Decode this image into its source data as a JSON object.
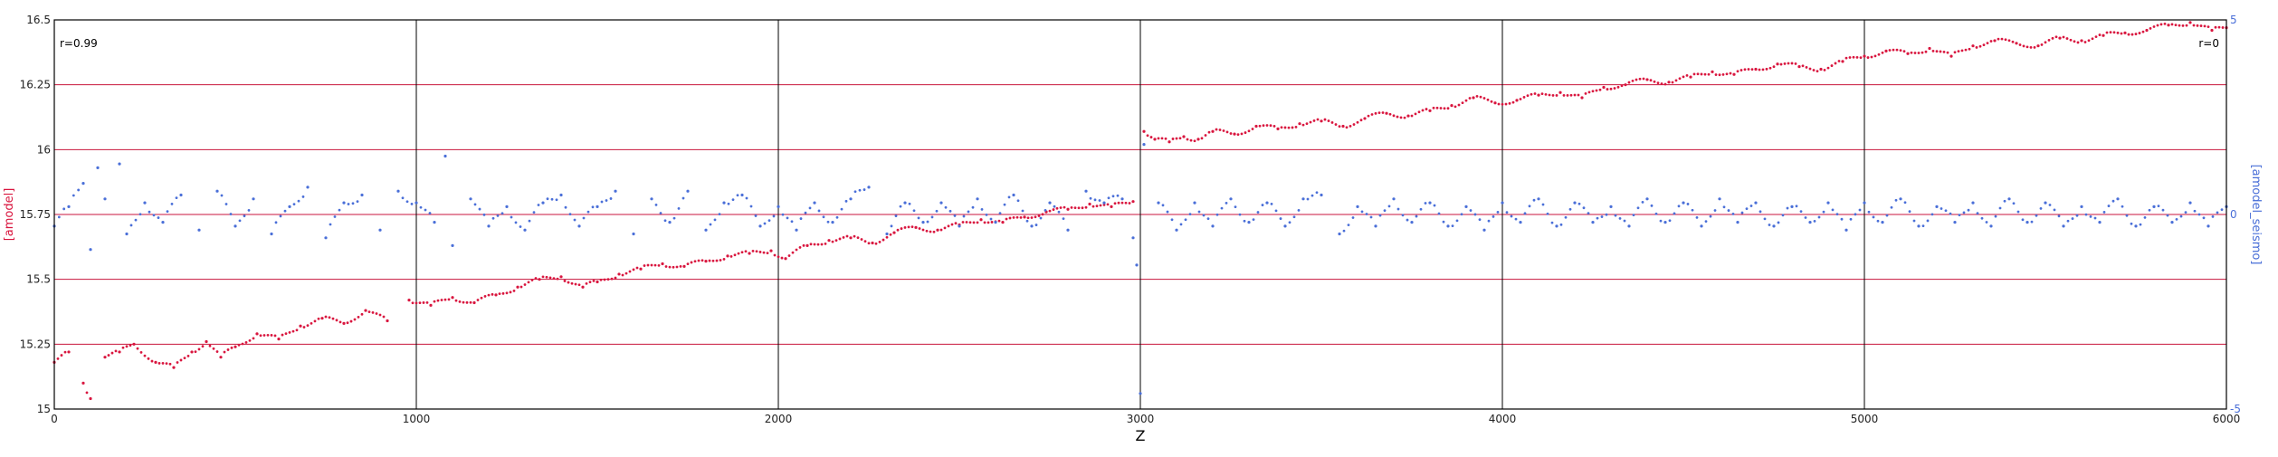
{
  "chart_data": {
    "type": "scatter",
    "xlabel": "Z",
    "y_left_label": "[amodel]",
    "y_right_label": "[amodel_seismo]",
    "x_range": [
      0,
      6000
    ],
    "y_left_range": [
      15,
      16.5
    ],
    "y_right_range": [
      -5,
      5
    ],
    "x_ticks": [
      "0",
      "1000",
      "2000",
      "3000",
      "4000",
      "5000",
      "6000"
    ],
    "y_left_ticks": [
      "15",
      "15.25",
      "15.5",
      "15.75",
      "16",
      "16.25",
      "16.5"
    ],
    "y_right_ticks": [
      "-5",
      "0",
      "5"
    ],
    "grid": {
      "vertical": true,
      "horizontal": true
    },
    "annotations": {
      "left": "r=0.99",
      "right": "r=0"
    },
    "colors": {
      "amodel": "#d9163f",
      "amodel_seismo": "#4a6fd8",
      "grid_h": "#c8163c",
      "grid_v": "#000000"
    },
    "series": [
      {
        "name": "[amodel]",
        "axis": "left",
        "color": "#d9163f",
        "points": [
          [
            0,
            15.18
          ],
          [
            40,
            15.22
          ],
          [
            80,
            15.1
          ],
          [
            100,
            15.04
          ],
          [
            140,
            15.2
          ],
          [
            180,
            15.22
          ],
          [
            220,
            15.25
          ],
          [
            280,
            15.18
          ],
          [
            330,
            15.16
          ],
          [
            380,
            15.22
          ],
          [
            420,
            15.26
          ],
          [
            460,
            15.2
          ],
          [
            500,
            15.24
          ],
          [
            560,
            15.29
          ],
          [
            620,
            15.27
          ],
          [
            680,
            15.32
          ],
          [
            740,
            15.35
          ],
          [
            800,
            15.33
          ],
          [
            860,
            15.38
          ],
          [
            920,
            15.34
          ],
          [
            980,
            15.42
          ],
          [
            1040,
            15.4
          ],
          [
            1100,
            15.43
          ],
          [
            1160,
            15.41
          ],
          [
            1220,
            15.44
          ],
          [
            1280,
            15.47
          ],
          [
            1340,
            15.5
          ],
          [
            1400,
            15.51
          ],
          [
            1460,
            15.47
          ],
          [
            1500,
            15.49
          ],
          [
            1560,
            15.52
          ],
          [
            1620,
            15.54
          ],
          [
            1680,
            15.56
          ],
          [
            1740,
            15.55
          ],
          [
            1800,
            15.57
          ],
          [
            1860,
            15.59
          ],
          [
            1920,
            15.6
          ],
          [
            1980,
            15.61
          ],
          [
            2020,
            15.58
          ],
          [
            2080,
            15.63
          ],
          [
            2140,
            15.65
          ],
          [
            2200,
            15.66
          ],
          [
            2260,
            15.64
          ],
          [
            2320,
            15.68
          ],
          [
            2380,
            15.7
          ],
          [
            2440,
            15.69
          ],
          [
            2500,
            15.71
          ],
          [
            2560,
            15.73
          ],
          [
            2620,
            15.72
          ],
          [
            2680,
            15.74
          ],
          [
            2740,
            15.76
          ],
          [
            2800,
            15.77
          ],
          [
            2860,
            15.79
          ],
          [
            2920,
            15.78
          ],
          [
            2980,
            15.8
          ],
          [
            3010,
            16.07
          ],
          [
            3040,
            16.04
          ],
          [
            3080,
            16.03
          ],
          [
            3120,
            16.05
          ],
          [
            3160,
            16.04
          ],
          [
            3200,
            16.07
          ],
          [
            3260,
            16.06
          ],
          [
            3320,
            16.09
          ],
          [
            3380,
            16.08
          ],
          [
            3440,
            16.1
          ],
          [
            3500,
            16.11
          ],
          [
            3560,
            16.09
          ],
          [
            3620,
            16.12
          ],
          [
            3680,
            16.14
          ],
          [
            3740,
            16.13
          ],
          [
            3800,
            16.15
          ],
          [
            3860,
            16.17
          ],
          [
            3920,
            16.2
          ],
          [
            3980,
            16.18
          ],
          [
            4040,
            16.19
          ],
          [
            4100,
            16.21
          ],
          [
            4160,
            16.22
          ],
          [
            4220,
            16.2
          ],
          [
            4280,
            16.24
          ],
          [
            4340,
            16.25
          ],
          [
            4400,
            16.27
          ],
          [
            4460,
            16.26
          ],
          [
            4520,
            16.28
          ],
          [
            4580,
            16.3
          ],
          [
            4640,
            16.29
          ],
          [
            4700,
            16.31
          ],
          [
            4760,
            16.33
          ],
          [
            4820,
            16.32
          ],
          [
            4880,
            16.31
          ],
          [
            4940,
            16.34
          ],
          [
            5000,
            16.36
          ],
          [
            5060,
            16.38
          ],
          [
            5120,
            16.37
          ],
          [
            5180,
            16.39
          ],
          [
            5240,
            16.36
          ],
          [
            5300,
            16.4
          ],
          [
            5360,
            16.42
          ],
          [
            5420,
            16.41
          ],
          [
            5480,
            16.4
          ],
          [
            5540,
            16.43
          ],
          [
            5600,
            16.42
          ],
          [
            5660,
            16.44
          ],
          [
            5720,
            16.45
          ],
          [
            5780,
            16.46
          ],
          [
            5840,
            16.48
          ],
          [
            5900,
            16.49
          ],
          [
            5960,
            16.46
          ],
          [
            6000,
            16.47
          ]
        ]
      },
      {
        "name": "[amodel_seismo]",
        "axis": "right",
        "color": "#4a6fd8",
        "points": [
          [
            0,
            -0.3
          ],
          [
            40,
            0.2
          ],
          [
            80,
            0.8
          ],
          [
            100,
            -0.9
          ],
          [
            120,
            1.2
          ],
          [
            140,
            0.4
          ],
          [
            180,
            1.3
          ],
          [
            200,
            -0.5
          ],
          [
            250,
            0.3
          ],
          [
            300,
            -0.2
          ],
          [
            350,
            0.5
          ],
          [
            400,
            -0.4
          ],
          [
            450,
            0.6
          ],
          [
            500,
            -0.3
          ],
          [
            550,
            0.4
          ],
          [
            600,
            -0.5
          ],
          [
            650,
            0.2
          ],
          [
            700,
            0.7
          ],
          [
            750,
            -0.6
          ],
          [
            800,
            0.3
          ],
          [
            850,
            0.5
          ],
          [
            900,
            -0.4
          ],
          [
            950,
            0.6
          ],
          [
            1000,
            0.3
          ],
          [
            1050,
            -0.2
          ],
          [
            1080,
            1.5
          ],
          [
            1100,
            -0.8
          ],
          [
            1150,
            0.4
          ],
          [
            1200,
            -0.3
          ],
          [
            1250,
            0.2
          ],
          [
            1300,
            -0.4
          ],
          [
            1350,
            0.3
          ],
          [
            1400,
            0.5
          ],
          [
            1450,
            -0.3
          ],
          [
            1500,
            0.2
          ],
          [
            1550,
            0.6
          ],
          [
            1600,
            -0.5
          ],
          [
            1650,
            0.4
          ],
          [
            1700,
            -0.2
          ],
          [
            1750,
            0.6
          ],
          [
            1800,
            -0.4
          ],
          [
            1850,
            0.3
          ],
          [
            1900,
            0.5
          ],
          [
            1950,
            -0.3
          ],
          [
            2000,
            0.2
          ],
          [
            2050,
            -0.4
          ],
          [
            2100,
            0.3
          ],
          [
            2150,
            -0.2
          ],
          [
            2200,
            0.4
          ],
          [
            2250,
            0.7
          ],
          [
            2300,
            -0.5
          ],
          [
            2350,
            0.3
          ],
          [
            2400,
            -0.2
          ],
          [
            2450,
            0.3
          ],
          [
            2500,
            -0.3
          ],
          [
            2550,
            0.4
          ],
          [
            2600,
            -0.2
          ],
          [
            2650,
            0.5
          ],
          [
            2700,
            -0.3
          ],
          [
            2750,
            0.3
          ],
          [
            2800,
            -0.4
          ],
          [
            2850,
            0.6
          ],
          [
            2900,
            0.3
          ],
          [
            2950,
            0.4
          ],
          [
            2980,
            -0.6
          ],
          [
            2990,
            -1.3
          ],
          [
            3000,
            -4.6
          ],
          [
            3010,
            1.8
          ],
          [
            3050,
            0.3
          ],
          [
            3100,
            -0.4
          ],
          [
            3150,
            0.3
          ],
          [
            3200,
            -0.3
          ],
          [
            3250,
            0.4
          ],
          [
            3300,
            -0.2
          ],
          [
            3350,
            0.3
          ],
          [
            3400,
            -0.3
          ],
          [
            3450,
            0.4
          ],
          [
            3500,
            0.5
          ],
          [
            3550,
            -0.5
          ],
          [
            3600,
            0.2
          ],
          [
            3650,
            -0.3
          ],
          [
            3700,
            0.4
          ],
          [
            3750,
            -0.2
          ],
          [
            3800,
            0.3
          ],
          [
            3850,
            -0.3
          ],
          [
            3900,
            0.2
          ],
          [
            3950,
            -0.4
          ],
          [
            4000,
            0.3
          ],
          [
            4050,
            -0.2
          ],
          [
            4100,
            0.4
          ],
          [
            4150,
            -0.3
          ],
          [
            4200,
            0.3
          ],
          [
            4250,
            -0.2
          ],
          [
            4300,
            0.2
          ],
          [
            4350,
            -0.3
          ],
          [
            4400,
            0.4
          ],
          [
            4450,
            -0.2
          ],
          [
            4500,
            0.3
          ],
          [
            4550,
            -0.3
          ],
          [
            4600,
            0.4
          ],
          [
            4650,
            -0.2
          ],
          [
            4700,
            0.3
          ],
          [
            4750,
            -0.3
          ],
          [
            4800,
            0.2
          ],
          [
            4850,
            -0.2
          ],
          [
            4900,
            0.3
          ],
          [
            4950,
            -0.4
          ],
          [
            5000,
            0.3
          ],
          [
            5050,
            -0.2
          ],
          [
            5100,
            0.4
          ],
          [
            5150,
            -0.3
          ],
          [
            5200,
            0.2
          ],
          [
            5250,
            -0.2
          ],
          [
            5300,
            0.3
          ],
          [
            5350,
            -0.3
          ],
          [
            5400,
            0.4
          ],
          [
            5450,
            -0.2
          ],
          [
            5500,
            0.3
          ],
          [
            5550,
            -0.3
          ],
          [
            5600,
            0.2
          ],
          [
            5650,
            -0.2
          ],
          [
            5700,
            0.4
          ],
          [
            5750,
            -0.3
          ],
          [
            5800,
            0.2
          ],
          [
            5850,
            -0.2
          ],
          [
            5900,
            0.3
          ],
          [
            5950,
            -0.3
          ],
          [
            6000,
            0.2
          ]
        ]
      }
    ]
  }
}
